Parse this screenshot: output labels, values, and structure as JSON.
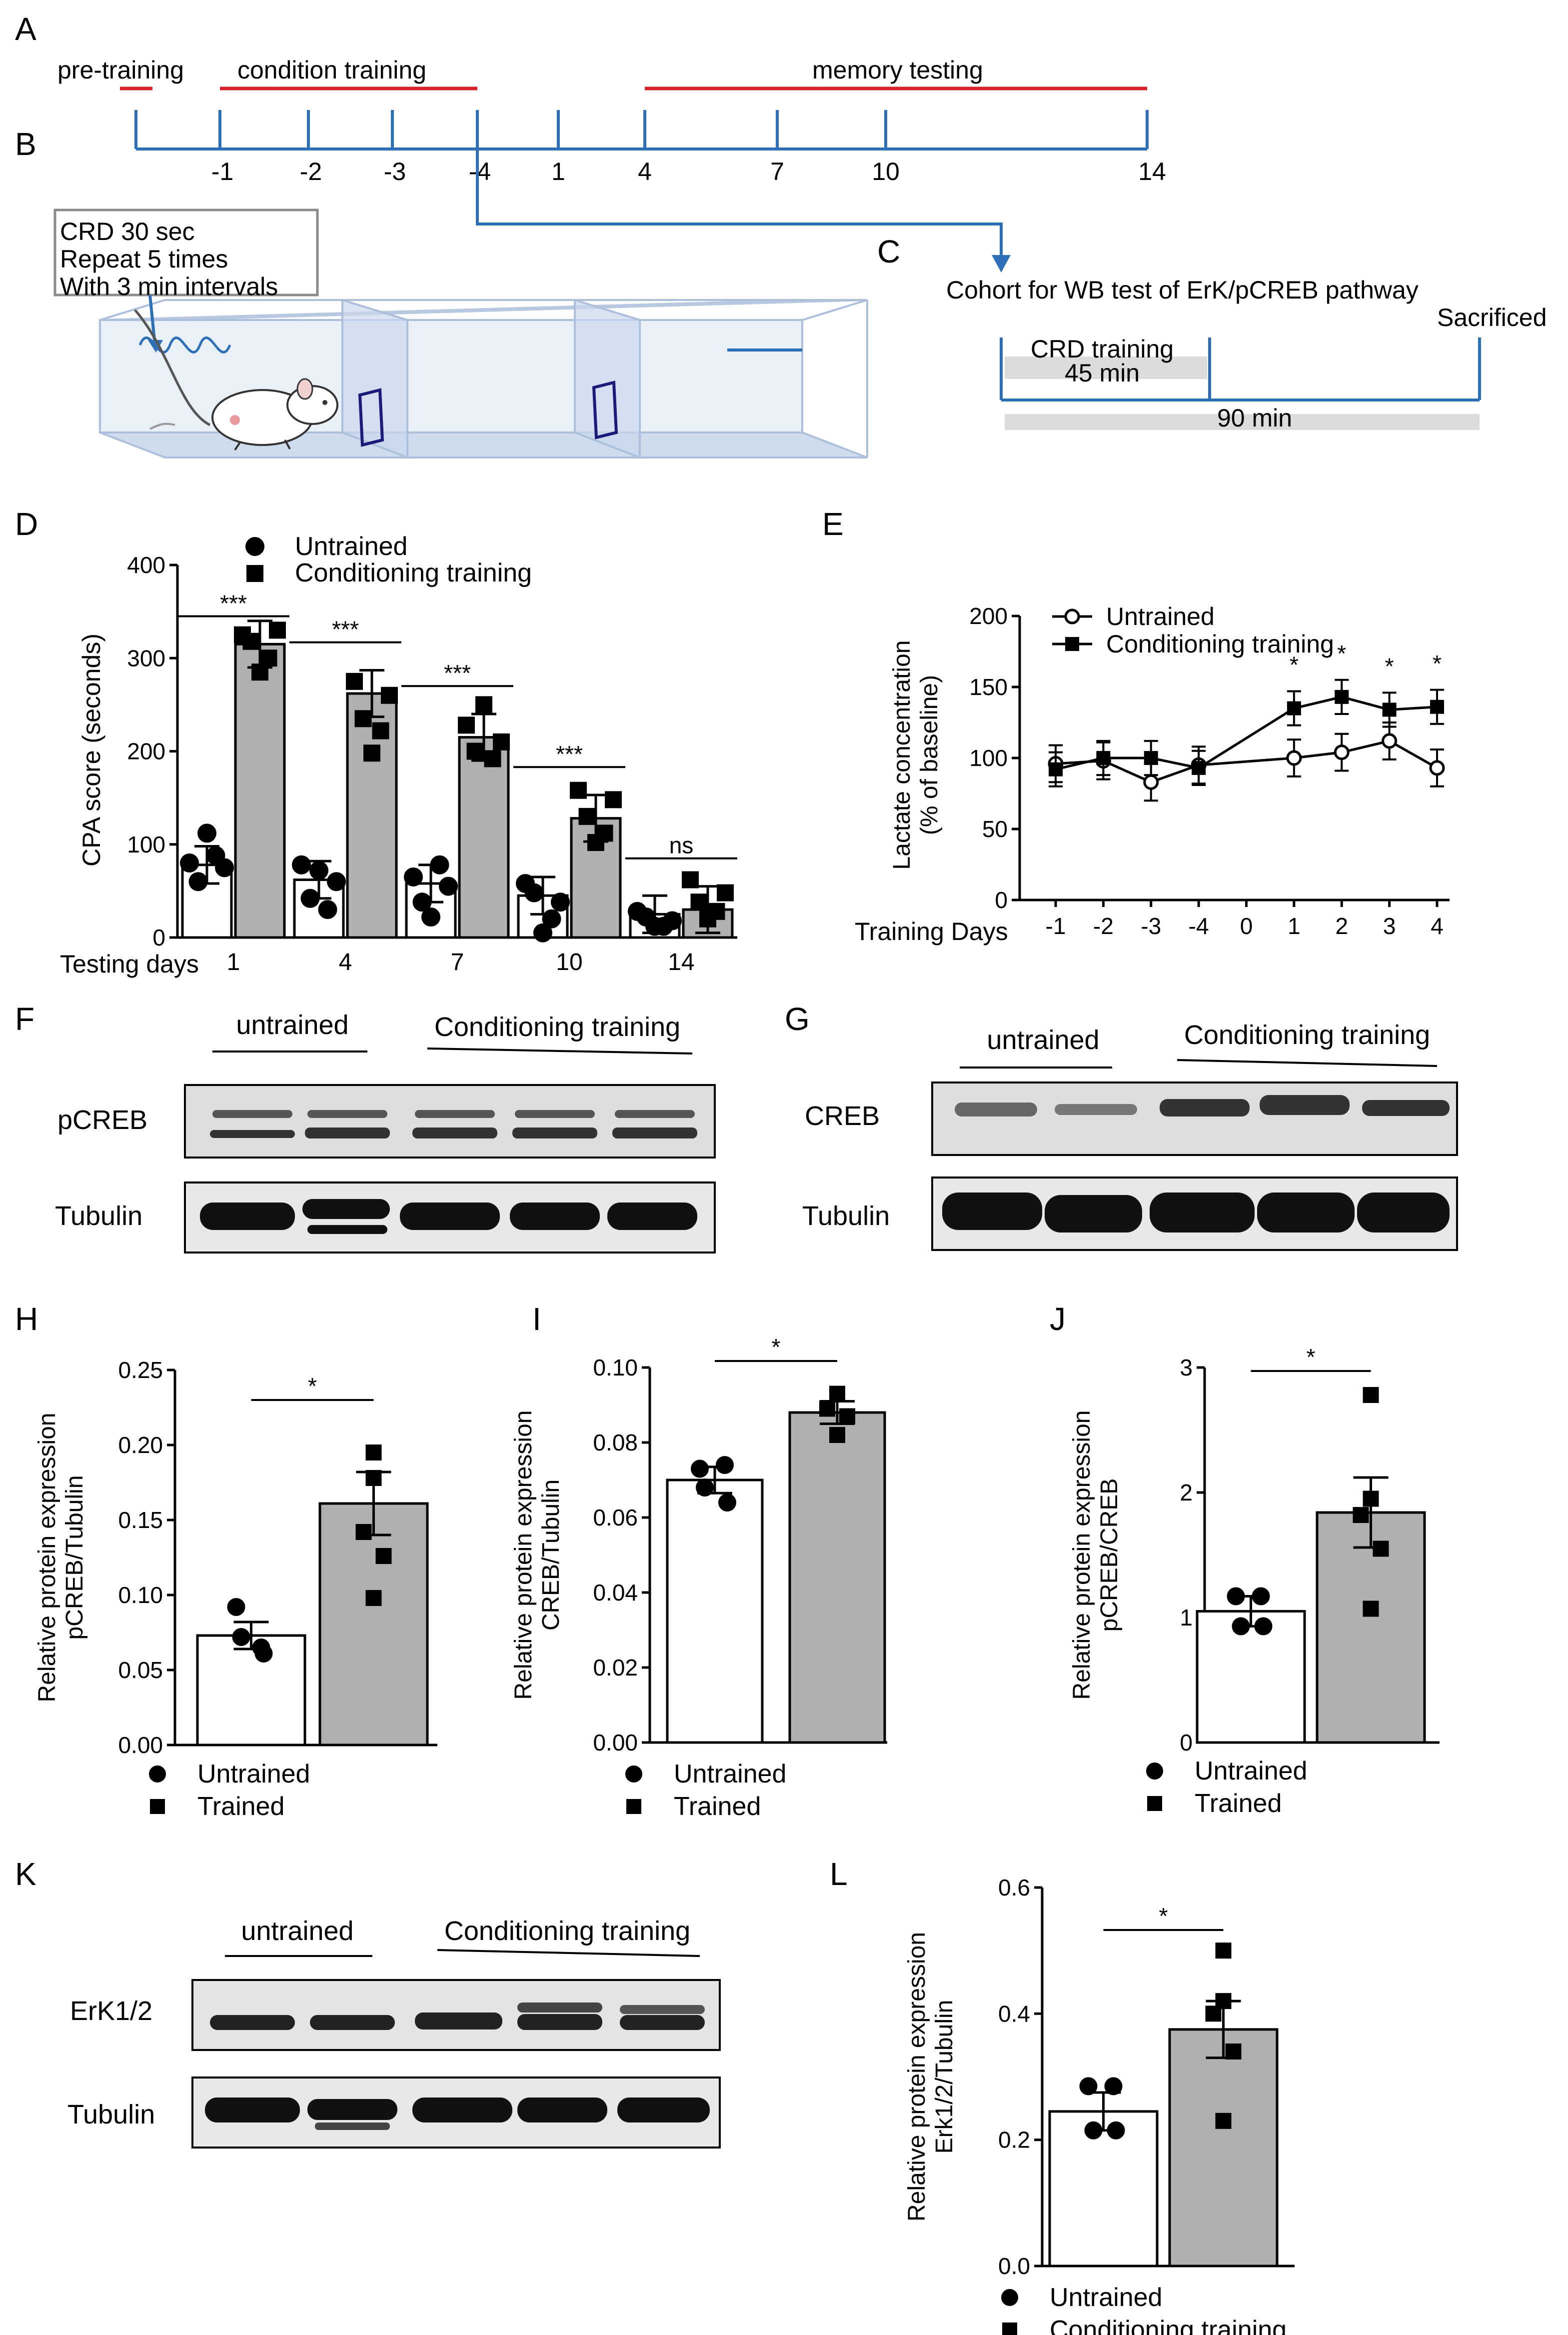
{
  "panel_labels": {
    "A": "A",
    "B": "B",
    "C": "C",
    "D": "D",
    "E": "E",
    "F": "F",
    "G": "G",
    "H": "H",
    "I": "I",
    "J": "J",
    "K": "K",
    "L": "L"
  },
  "timeline": {
    "phases": [
      "pre-training",
      "condition training",
      "memory testing"
    ],
    "days": [
      "-1",
      "-2",
      "-3",
      "-4",
      "1",
      "4",
      "7",
      "10",
      "14"
    ]
  },
  "protocol": {
    "crd_lines": [
      "CRD 30 sec",
      "Repeat 5 times",
      "With 3 min intervals"
    ]
  },
  "cohort": {
    "title": "Cohort for WB test of ErK/pCREB pathway",
    "sacrificed": "Sacrificed",
    "crd_training": "CRD training",
    "bar1": "45 min",
    "bar2": "90 min"
  },
  "blots": {
    "F": {
      "groups": [
        "untrained",
        "Conditioning training"
      ],
      "rows": [
        "pCREB",
        "Tubulin"
      ]
    },
    "G": {
      "groups": [
        "untrained",
        "Conditioning training"
      ],
      "rows": [
        "CREB",
        "Tubulin"
      ]
    },
    "K": {
      "groups": [
        "untrained",
        "Conditioning training"
      ],
      "rows": [
        "ErK1/2",
        "Tubulin"
      ]
    }
  },
  "colors": {
    "bar_gray": "#b0b0b0",
    "timeline_blue": "#2f6fb5",
    "timeline_red": "#d8202a"
  },
  "chart_data": [
    {
      "id": "D",
      "type": "bar",
      "ylabel": "CPA score (seconds)",
      "xlabel": "Testing days",
      "categories": [
        "1",
        "4",
        "7",
        "10",
        "14"
      ],
      "ylim": [
        0,
        400
      ],
      "yticks": [
        "0",
        "100",
        "200",
        "300",
        "400"
      ],
      "legend": [
        "Untrained",
        "Conditioning training"
      ],
      "series": [
        {
          "name": "Untrained",
          "values": [
            78,
            62,
            58,
            45,
            25
          ]
        },
        {
          "name": "Conditioning training",
          "values": [
            315,
            262,
            215,
            128,
            30
          ]
        }
      ],
      "significance": [
        "***",
        "***",
        "***",
        "***",
        "ns"
      ]
    },
    {
      "id": "E",
      "type": "line",
      "ylabel": "Lactate concentration (% of baseline)",
      "xlabel": "Training Days",
      "categories": [
        "-1",
        "-2",
        "-3",
        "-4",
        "0",
        "1",
        "2",
        "3",
        "4"
      ],
      "ylim": [
        0,
        200
      ],
      "yticks": [
        "0",
        "50",
        "100",
        "150",
        "200"
      ],
      "legend": [
        "Untrained",
        "Conditioning training"
      ],
      "series": [
        {
          "name": "Untrained",
          "values": [
            96,
            98,
            83,
            95,
            null,
            100,
            104,
            112,
            93
          ]
        },
        {
          "name": "Conditioning training",
          "values": [
            92,
            100,
            100,
            93,
            null,
            135,
            143,
            134,
            136
          ]
        }
      ],
      "significance": [
        {
          "x": "1",
          "text": "*"
        },
        {
          "x": "2",
          "text": "*"
        },
        {
          "x": "3",
          "text": "*"
        },
        {
          "x": "4",
          "text": "*"
        }
      ]
    },
    {
      "id": "H",
      "type": "bar",
      "ylabel": "Relative protein expression pCREB/Tubulin",
      "categories": [
        "Untrained",
        "Trained"
      ],
      "values": [
        0.073,
        0.161
      ],
      "ylim": [
        0,
        0.25
      ],
      "yticks": [
        "0.00",
        "0.05",
        "0.10",
        "0.15",
        "0.20",
        "0.25"
      ],
      "significance": "*",
      "legend": [
        "Untrained",
        "Trained"
      ],
      "points": [
        [
          0.092,
          0.065,
          0.072,
          0.061
        ],
        [
          0.195,
          0.178,
          0.142,
          0.126,
          0.098
        ]
      ]
    },
    {
      "id": "I",
      "type": "bar",
      "ylabel": "Relative protein expression CREB/Tubulin",
      "categories": [
        "Untrained",
        "Trained"
      ],
      "values": [
        0.07,
        0.088
      ],
      "ylim": [
        0,
        0.1
      ],
      "yticks": [
        "0.00",
        "0.02",
        "0.04",
        "0.06",
        "0.08",
        "0.10"
      ],
      "significance": "*",
      "legend": [
        "Untrained",
        "Trained"
      ],
      "points": [
        [
          0.073,
          0.074,
          0.068,
          0.064
        ],
        [
          0.093,
          0.093,
          0.089,
          0.087,
          0.082
        ]
      ]
    },
    {
      "id": "J",
      "type": "bar",
      "ylabel": "Relative protein expression pCREB/CREB",
      "categories": [
        "Untrained",
        "Trained"
      ],
      "values": [
        1.05,
        1.84
      ],
      "ylim": [
        0,
        3
      ],
      "yticks": [
        "0",
        "1",
        "2",
        "3"
      ],
      "significance": "*",
      "legend": [
        "Untrained",
        "Trained"
      ],
      "points": [
        [
          1.17,
          1.17,
          0.93,
          0.93
        ],
        [
          2.78,
          1.95,
          1.82,
          1.55,
          1.07
        ]
      ]
    },
    {
      "id": "L",
      "type": "bar",
      "ylabel": "Relative protein expression Erk1/2/Tubulin",
      "categories": [
        "Untrained",
        "Conditioning training"
      ],
      "values": [
        0.245,
        0.375
      ],
      "ylim": [
        0,
        0.6
      ],
      "yticks": [
        "0.0",
        "0.2",
        "0.4",
        "0.6"
      ],
      "significance": "*",
      "legend": [
        "Untrained",
        "Conditioning training"
      ],
      "points": [
        [
          0.285,
          0.285,
          0.215,
          0.215
        ],
        [
          0.5,
          0.42,
          0.4,
          0.34,
          0.23
        ]
      ]
    }
  ]
}
